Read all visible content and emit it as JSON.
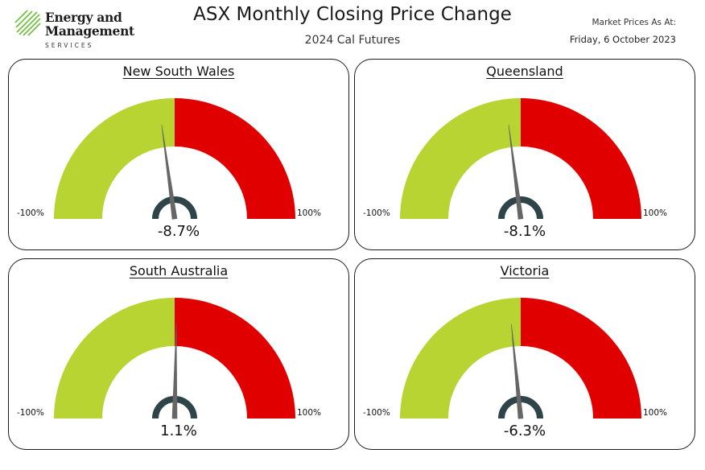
{
  "header": {
    "logo": {
      "line1": "Energy and",
      "line2": "Management",
      "line3": "SERVICES"
    },
    "title": "ASX Monthly Closing Price Change",
    "subtitle": "2024 Cal Futures",
    "as_at_label": "Market Prices As At:",
    "as_at_date": "Friday, 6 October 2023"
  },
  "colors": {
    "negative_band": "#b8d432",
    "positive_band": "#e00000",
    "hub": "#2f4449",
    "needle": "#666666"
  },
  "chart_data": [
    {
      "type": "gauge",
      "title": "New South Wales",
      "value": -8.7,
      "value_label": "-8.7%",
      "min": -100,
      "max": 100,
      "min_label": "-100%",
      "max_label": "100%"
    },
    {
      "type": "gauge",
      "title": "Queensland",
      "value": -8.1,
      "value_label": "-8.1%",
      "min": -100,
      "max": 100,
      "min_label": "-100%",
      "max_label": "100%"
    },
    {
      "type": "gauge",
      "title": "South Australia",
      "value": 1.1,
      "value_label": "1.1%",
      "min": -100,
      "max": 100,
      "min_label": "-100%",
      "max_label": "100%"
    },
    {
      "type": "gauge",
      "title": "Victoria",
      "value": -6.3,
      "value_label": "-6.3%",
      "min": -100,
      "max": 100,
      "min_label": "-100%",
      "max_label": "100%"
    }
  ]
}
